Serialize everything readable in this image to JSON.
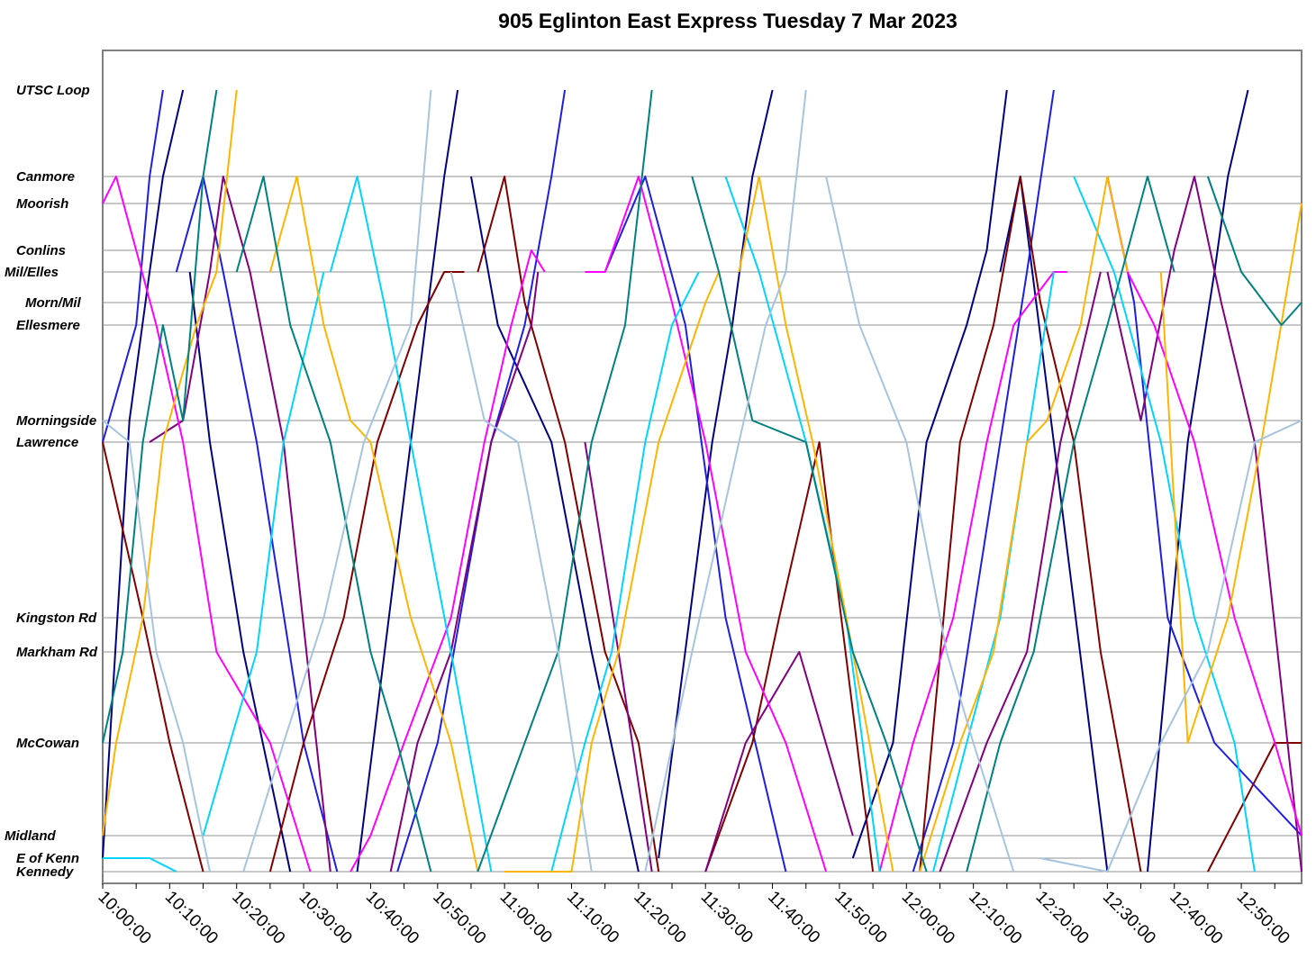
{
  "chart_data": {
    "type": "line",
    "title": "905 Eglinton East Express Tuesday 7 Mar 2023",
    "xlabel": "",
    "ylabel": "",
    "x_range": [
      "10:00:00",
      "12:59:00"
    ],
    "x_ticks": [
      "10:00:00",
      "10:10:00",
      "10:20:00",
      "10:30:00",
      "10:40:00",
      "10:50:00",
      "11:00:00",
      "11:10:00",
      "11:20:00",
      "11:30:00",
      "11:40:00",
      "11:50:00",
      "12:00:00",
      "12:10:00",
      "12:20:00",
      "12:30:00",
      "12:40:00",
      "12:50:00"
    ],
    "stations": [
      "UTSC Loop",
      "Canmore",
      "Moorish",
      "Conlins",
      "Mil/Elles",
      "Morn/Mil",
      "Ellesmere",
      "Morningside",
      "Lawrence",
      "Kingston Rd",
      "Markham Rd",
      "McCowan",
      "Midland",
      "E of Kenn",
      "Kennedy"
    ],
    "grid": true,
    "legend": "none",
    "series": [
      {
        "color": "#000080",
        "trips": [
          [
            "10:00:00",
            "E of Kenn",
            "10:04:00",
            "Morningside",
            "10:07:00",
            "Mil/Elles",
            "10:09:00",
            "Canmore",
            "10:12:00",
            "UTSC Loop"
          ],
          [
            "10:13:00",
            "Mil/Elles",
            "10:16:00",
            "Lawrence",
            "10:21:00",
            "Markham Rd",
            "10:28:00",
            "Kennedy"
          ],
          [
            "10:38:00",
            "Kennedy",
            "10:46:00",
            "Lawrence",
            "10:51:00",
            "Canmore",
            "10:53:00",
            "UTSC Loop"
          ],
          [
            "10:55:00",
            "Canmore",
            "10:59:00",
            "Ellesmere",
            "11:07:00",
            "Lawrence",
            "11:13:00",
            "Markham Rd",
            "11:20:00",
            "Kennedy"
          ],
          [
            "11:23:00",
            "E of Kenn",
            "11:31:00",
            "Lawrence",
            "11:34:00",
            "Ellesmere",
            "11:37:00",
            "Canmore",
            "11:40:00",
            "UTSC Loop"
          ],
          [
            "11:52:00",
            "E of Kenn",
            "11:58:00",
            "McCowan",
            "12:03:00",
            "Lawrence",
            "12:09:00",
            "Ellesmere",
            "12:12:00",
            "Conlins",
            "12:15:00",
            "UTSC Loop"
          ],
          [
            "12:14:00",
            "Mil/Elles",
            "12:17:00",
            "Canmore",
            "12:22:00",
            "Lawrence",
            "12:30:00",
            "Kennedy"
          ],
          [
            "12:36:00",
            "Kennedy",
            "12:42:00",
            "Lawrence",
            "12:46:00",
            "Mil/Elles",
            "12:48:00",
            "Canmore",
            "12:51:00",
            "UTSC Loop"
          ]
        ]
      },
      {
        "color": "#1e1ee0",
        "trips": [
          [
            "10:00:00",
            "Lawrence",
            "10:05:00",
            "Ellesmere",
            "10:07:00",
            "Canmore",
            "10:09:00",
            "UTSC Loop"
          ],
          [
            "10:11:00",
            "Mil/Elles",
            "10:15:00",
            "Canmore",
            "10:18:00",
            "Mil/Elles",
            "10:23:00",
            "Lawrence",
            "10:30:00",
            "McCowan",
            "10:35:00",
            "Kennedy"
          ],
          [
            "10:44:00",
            "Kennedy",
            "10:50:00",
            "McCowan",
            "10:58:00",
            "Lawrence",
            "11:03:00",
            "Ellesmere",
            "11:07:00",
            "Canmore",
            "11:09:00",
            "UTSC Loop"
          ],
          [
            "11:15:00",
            "Mil/Elles",
            "11:21:00",
            "Canmore",
            "11:27:00",
            "Ellesmere",
            "11:33:00",
            "Kingston Rd",
            "11:42:00",
            "Kennedy"
          ],
          [
            "12:01:00",
            "Kennedy",
            "12:07:00",
            "McCowan",
            "12:14:00",
            "Lawrence",
            "12:18:00",
            "Mil/Elles",
            "12:22:00",
            "UTSC Loop"
          ],
          [
            "12:30:00",
            "Canmore",
            "12:34:00",
            "Morn/Mil",
            "12:39:00",
            "Kingston Rd",
            "12:46:00",
            "McCowan",
            "12:59:00",
            "Midland"
          ]
        ]
      },
      {
        "color": "#800000",
        "trips": [
          [
            "10:00:00",
            "Lawrence",
            "10:06:00",
            "Kingston Rd",
            "10:10:00",
            "McCowan",
            "10:15:00",
            "Kennedy"
          ],
          [
            "10:25:00",
            "Kennedy",
            "10:30:00",
            "McCowan",
            "10:36:00",
            "Kingston Rd",
            "10:41:00",
            "Lawrence",
            "10:47:00",
            "Ellesmere",
            "10:51:00",
            "Mil/Elles",
            "10:54:00",
            "Mil/Elles"
          ],
          [
            "10:56:00",
            "Mil/Elles",
            "11:00:00",
            "Canmore",
            "11:03:00",
            "Morn/Mil",
            "11:09:00",
            "Lawrence",
            "11:15:00",
            "Markham Rd",
            "11:20:00",
            "McCowan",
            "11:23:00",
            "Kennedy"
          ],
          [
            "11:30:00",
            "Kennedy",
            "11:37:00",
            "McCowan",
            "11:41:00",
            "Kingston Rd",
            "11:47:00",
            "Lawrence",
            "11:55:00",
            "Kennedy"
          ],
          [
            "12:02:00",
            "Kennedy",
            "12:08:00",
            "Lawrence",
            "12:13:00",
            "Ellesmere",
            "12:17:00",
            "Canmore",
            "12:20:00",
            "Morn/Mil",
            "12:25:00",
            "Lawrence",
            "12:29:00",
            "Markham Rd",
            "12:35:00",
            "Kennedy"
          ],
          [
            "12:45:00",
            "Kennedy",
            "12:55:00",
            "McCowan",
            "12:59:00",
            "McCowan"
          ]
        ]
      },
      {
        "color": "#800080",
        "trips": [
          [
            "10:07:00",
            "Lawrence",
            "10:12:00",
            "Morningside",
            "10:16:00",
            "Mil/Elles",
            "10:18:00",
            "Canmore",
            "10:22:00",
            "Mil/Elles",
            "10:27:00",
            "Lawrence",
            "10:34:00",
            "Kennedy"
          ],
          [
            "10:43:00",
            "Kennedy",
            "10:47:00",
            "McCowan",
            "10:52:00",
            "Markham Rd",
            "10:58:00",
            "Lawrence",
            "11:04:00",
            "Ellesmere",
            "11:05:00",
            "Mil/Elles"
          ],
          [
            "11:12:00",
            "Lawrence",
            "11:17:00",
            "Markham Rd",
            "11:22:00",
            "Kennedy"
          ],
          [
            "11:30:00",
            "Kennedy",
            "11:36:00",
            "McCowan",
            "11:44:00",
            "Markham Rd",
            "11:52:00",
            "Midland"
          ],
          [
            "12:05:00",
            "Kennedy",
            "12:12:00",
            "McCowan",
            "12:18:00",
            "Markham Rd",
            "12:23:00",
            "Lawrence",
            "12:29:00",
            "Mil/Elles"
          ],
          [
            "12:30:00",
            "Mil/Elles",
            "12:35:00",
            "Morningside",
            "12:40:00",
            "Conlins",
            "12:43:00",
            "Canmore",
            "12:47:00",
            "Morn/Mil",
            "12:52:00",
            "Lawrence",
            "12:59:00",
            "Kennedy"
          ]
        ]
      },
      {
        "color": "#ff00ff",
        "trips": [
          [
            "10:00:00",
            "Moorish",
            "10:02:00",
            "Canmore",
            "10:05:00",
            "Conlins",
            "10:08:00",
            "Ellesmere",
            "10:12:00",
            "Lawrence",
            "10:17:00",
            "Markham Rd",
            "10:25:00",
            "McCowan",
            "10:31:00",
            "Kennedy"
          ],
          [
            "10:37:00",
            "Kennedy",
            "10:40:00",
            "Midland",
            "10:45:00",
            "McCowan",
            "10:52:00",
            "Kingston Rd",
            "10:57:00",
            "Lawrence",
            "11:01:00",
            "Ellesmere",
            "11:04:00",
            "Conlins",
            "11:06:00",
            "Mil/Elles"
          ],
          [
            "11:12:00",
            "Mil/Elles",
            "11:15:00",
            "Mil/Elles",
            "11:20:00",
            "Canmore",
            "11:25:00",
            "Morn/Mil",
            "11:30:00",
            "Lawrence",
            "11:36:00",
            "Markham Rd",
            "11:42:00",
            "McCowan",
            "11:48:00",
            "Kennedy"
          ],
          [
            "11:56:00",
            "Kennedy",
            "12:01:00",
            "McCowan",
            "12:07:00",
            "Kingston Rd",
            "12:12:00",
            "Lawrence",
            "12:16:00",
            "Ellesmere",
            "12:22:00",
            "Mil/Elles",
            "12:24:00",
            "Mil/Elles"
          ],
          [
            "12:30:00",
            "Canmore",
            "12:33:00",
            "Mil/Elles",
            "12:37:00",
            "Ellesmere",
            "12:43:00",
            "Lawrence",
            "12:49:00",
            "Kingston Rd",
            "12:55:00",
            "McCowan",
            "12:59:00",
            "Midland"
          ]
        ]
      },
      {
        "color": "#00d5ff",
        "trips": [
          [
            "10:00:00",
            "E of Kenn",
            "10:07:00",
            "E of Kenn",
            "10:11:00",
            "Kennedy"
          ],
          [
            "10:15:00",
            "Midland",
            "10:19:00",
            "McCowan",
            "10:23:00",
            "Markham Rd",
            "10:27:00",
            "Lawrence",
            "10:33:00",
            "Mil/Elles"
          ],
          [
            "10:34:00",
            "Mil/Elles",
            "10:38:00",
            "Canmore",
            "10:42:00",
            "Morn/Mil",
            "10:46:00",
            "Lawrence",
            "10:52:00",
            "Markham Rd",
            "10:58:00",
            "Kennedy"
          ],
          [
            "11:07:00",
            "Kennedy",
            "11:12:00",
            "McCowan",
            "11:16:00",
            "Markham Rd",
            "11:21:00",
            "Lawrence",
            "11:25:00",
            "Ellesmere",
            "11:29:00",
            "Mil/Elles"
          ],
          [
            "11:33:00",
            "Canmore",
            "11:38:00",
            "Mil/Elles",
            "11:45:00",
            "Lawrence",
            "11:51:00",
            "Kingston Rd",
            "11:56:00",
            "Kennedy"
          ],
          [
            "12:04:00",
            "Kennedy",
            "12:09:00",
            "McCowan",
            "12:14:00",
            "Kingston Rd",
            "12:18:00",
            "Lawrence",
            "12:22:00",
            "Mil/Elles"
          ],
          [
            "12:25:00",
            "Canmore",
            "12:31:00",
            "Mil/Elles",
            "12:38:00",
            "Lawrence",
            "12:43:00",
            "Kingston Rd",
            "12:49:00",
            "McCowan",
            "12:52:00",
            "Kennedy"
          ]
        ]
      },
      {
        "color": "#ffb400",
        "trips": [
          [
            "10:00:00",
            "Midland",
            "10:02:00",
            "McCowan",
            "10:06:00",
            "Kingston Rd",
            "10:09:00",
            "Lawrence",
            "10:14:00",
            "Ellesmere",
            "10:17:00",
            "Mil/Elles",
            "10:20:00",
            "UTSC Loop"
          ],
          [
            "10:25:00",
            "Mil/Elles",
            "10:29:00",
            "Canmore",
            "10:33:00",
            "Ellesmere",
            "10:37:00",
            "Morningside",
            "10:40:00",
            "Lawrence",
            "10:46:00",
            "Kingston Rd",
            "10:52:00",
            "McCowan",
            "10:56:00",
            "Kennedy"
          ],
          [
            "11:00:00",
            "Kennedy",
            "11:10:00",
            "Kennedy",
            "11:13:00",
            "McCowan",
            "11:17:00",
            "Markham Rd",
            "11:23:00",
            "Lawrence",
            "11:30:00",
            "Morn/Mil",
            "11:32:00",
            "Mil/Elles"
          ],
          [
            "11:35:00",
            "Mil/Elles",
            "11:38:00",
            "Canmore",
            "11:42:00",
            "Ellesmere",
            "11:46:00",
            "Lawrence",
            "11:52:00",
            "Markham Rd",
            "11:58:00",
            "Kennedy"
          ],
          [
            "12:02:00",
            "Kennedy",
            "12:08:00",
            "McCowan",
            "12:13:00",
            "Markham Rd",
            "12:18:00",
            "Lawrence",
            "12:21:00",
            "Morningside",
            "12:26:00",
            "Ellesmere",
            "12:30:00",
            "Canmore",
            "12:33:00",
            "Mil/Elles"
          ],
          [
            "12:38:00",
            "Mil/Elles",
            "12:42:00",
            "McCowan",
            "12:48:00",
            "Kingston Rd",
            "12:53:00",
            "Lawrence",
            "12:59:00",
            "Moorish"
          ]
        ]
      },
      {
        "color": "#008080",
        "trips": [
          [
            "10:00:00",
            "McCowan",
            "10:03:00",
            "Markham Rd",
            "10:06:00",
            "Lawrence",
            "10:09:00",
            "Ellesmere",
            "10:12:00",
            "Morningside",
            "10:15:00",
            "Canmore",
            "10:17:00",
            "UTSC Loop"
          ],
          [
            "10:20:00",
            "Mil/Elles",
            "10:24:00",
            "Canmore",
            "10:28:00",
            "Ellesmere",
            "10:34:00",
            "Lawrence",
            "10:40:00",
            "Markham Rd",
            "10:44:00",
            "McCowan",
            "10:49:00",
            "Kennedy"
          ],
          [
            "10:56:00",
            "Kennedy",
            "11:03:00",
            "McCowan",
            "11:08:00",
            "Markham Rd",
            "11:13:00",
            "Lawrence",
            "11:18:00",
            "Ellesmere",
            "11:22:00",
            "UTSC Loop"
          ],
          [
            "11:28:00",
            "Canmore",
            "11:32:00",
            "Mil/Elles",
            "11:37:00",
            "Morningside",
            "11:45:00",
            "Lawrence",
            "11:52:00",
            "Markham Rd",
            "11:57:00",
            "McCowan",
            "12:03:00",
            "Kennedy"
          ],
          [
            "12:09:00",
            "Kennedy",
            "12:14:00",
            "McCowan",
            "12:19:00",
            "Markham Rd",
            "12:25:00",
            "Lawrence",
            "12:30:00",
            "Ellesmere",
            "12:36:00",
            "Canmore",
            "12:40:00",
            "Mil/Elles"
          ],
          [
            "12:45:00",
            "Canmore",
            "12:50:00",
            "Mil/Elles",
            "12:56:00",
            "Ellesmere",
            "12:59:00",
            "Morn/Mil"
          ]
        ]
      },
      {
        "color": "#a6c4e0",
        "trips": [
          [
            "10:00:00",
            "Morningside",
            "10:04:00",
            "Lawrence",
            "10:08:00",
            "Markham Rd",
            "10:12:00",
            "McCowan",
            "10:16:00",
            "Kennedy"
          ],
          [
            "10:21:00",
            "Kennedy",
            "10:27:00",
            "McCowan",
            "10:33:00",
            "Kingston Rd",
            "10:39:00",
            "Lawrence",
            "10:46:00",
            "Ellesmere",
            "10:49:00",
            "UTSC Loop"
          ],
          [
            "10:52:00",
            "Mil/Elles",
            "10:57:00",
            "Morningside",
            "11:02:00",
            "Lawrence",
            "11:08:00",
            "Markham Rd",
            "11:13:00",
            "Kennedy"
          ],
          [
            "11:21:00",
            "Kennedy",
            "11:28:00",
            "Markham Rd",
            "11:35:00",
            "Lawrence",
            "11:39:00",
            "Ellesmere",
            "11:42:00",
            "Mil/Elles",
            "11:45:00",
            "UTSC Loop"
          ],
          [
            "11:48:00",
            "Canmore",
            "11:53:00",
            "Ellesmere",
            "12:00:00",
            "Lawrence",
            "12:06:00",
            "Markham Rd",
            "12:10:00",
            "McCowan",
            "12:16:00",
            "Kennedy"
          ],
          [
            "12:20:00",
            "E of Kenn",
            "12:30:00",
            "Kennedy",
            "12:38:00",
            "McCowan",
            "12:45:00",
            "Markham Rd",
            "12:52:00",
            "Lawrence",
            "12:59:00",
            "Morningside"
          ]
        ]
      }
    ]
  }
}
